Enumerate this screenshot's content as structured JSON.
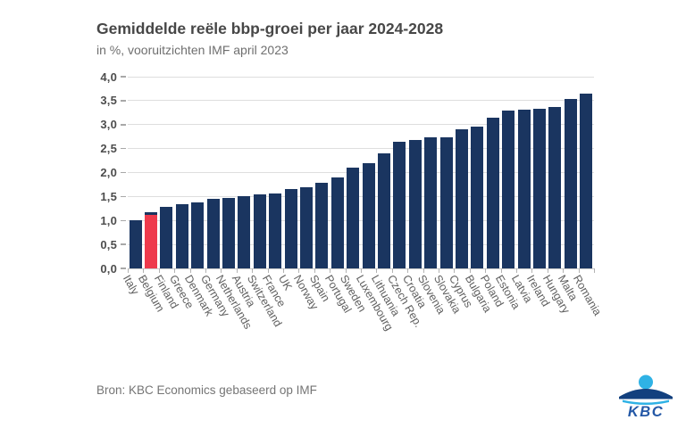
{
  "header": {
    "title": "Gemiddelde reële bbp-groei per jaar 2024-2028",
    "subtitle": "in %, vooruitzichten IMF april 2023"
  },
  "footer": {
    "source": "Bron: KBC Economics gebaseerd op IMF",
    "logo_text": "KBC"
  },
  "colors": {
    "bar": "#1a3560",
    "highlight": "#ee3a4c",
    "grid": "#dedede",
    "title_text": "#474747",
    "subtitle_text": "#6f6f6f",
    "axis_text": "#4d4d4d",
    "label_text": "#5f5f5f",
    "logo_light_blue": "#2fb2e5",
    "logo_navy": "#12407e",
    "logo_text_blue": "#2458a6"
  },
  "chart_data": {
    "type": "bar",
    "title": "Gemiddelde reële bbp-groei per jaar 2024-2028",
    "subtitle": "in %, vooruitzichten IMF april 2023",
    "xlabel": "",
    "ylabel": "in %",
    "ylim": [
      0,
      4
    ],
    "grid": true,
    "legend": false,
    "source": "Bron: KBC Economics gebaseerd op IMF",
    "ytick_values": [
      0,
      0.5,
      1,
      1.5,
      2,
      2.5,
      3,
      3.5,
      4
    ],
    "ytick_labels": [
      "0,0",
      "0,5",
      "1,0",
      "1,5",
      "2,0",
      "2,5",
      "3,0",
      "3,5",
      "4,0"
    ],
    "highlighted_category": "Belgium",
    "categories": [
      "Italy",
      "Belgium",
      "Finland",
      "Greece",
      "Denmark",
      "Germany",
      "Netherlands",
      "Austria",
      "Switzerland",
      "France",
      "UK",
      "Norway",
      "Spain",
      "Portugal",
      "Sweden",
      "Luxembourg",
      "Lithuania",
      "Czech Rep.",
      "Croatia",
      "Slovenia",
      "Slovakia",
      "Cyprus",
      "Bulgaria",
      "Poland",
      "Estonia",
      "Latvia",
      "Ireland",
      "Hungary",
      "Malta",
      "Romania"
    ],
    "values": [
      1.0,
      1.17,
      1.28,
      1.34,
      1.38,
      1.45,
      1.47,
      1.51,
      1.54,
      1.57,
      1.65,
      1.7,
      1.78,
      1.9,
      2.1,
      2.2,
      2.4,
      2.65,
      2.68,
      2.74,
      2.74,
      2.9,
      2.95,
      3.14,
      3.3,
      3.32,
      3.33,
      3.36,
      3.54,
      3.65
    ]
  }
}
